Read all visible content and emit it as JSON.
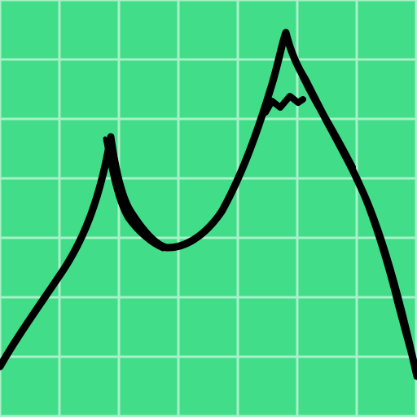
{
  "icon": {
    "name": "mountain-peaks-on-grid",
    "colors": {
      "background": "#42dd88",
      "grid": "#a8f0c8",
      "stroke": "#000000"
    }
  }
}
